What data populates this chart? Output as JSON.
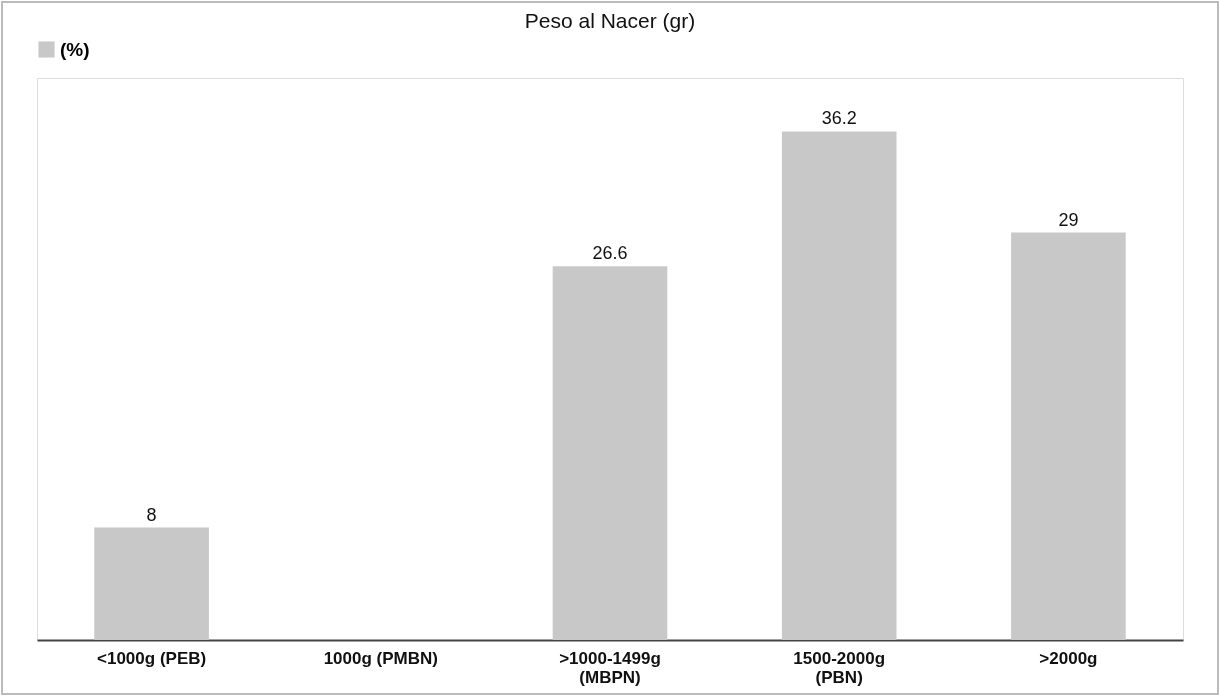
{
  "chart_data": {
    "type": "bar",
    "title": "Peso al Nacer (gr)",
    "categories": [
      "<1000g (PEB)",
      "1000g (PMBN)",
      ">1000-1499g (MBPN)",
      "1500-2000g (PBN)",
      ">2000g"
    ],
    "series": [
      {
        "name": "(%)",
        "color": "#c8c8c8",
        "values": [
          8,
          null,
          26.6,
          36.2,
          29
        ]
      }
    ],
    "ylim": [
      0,
      40
    ],
    "tick_labels": "x",
    "legend": "top",
    "data_labels": true,
    "grid": false
  }
}
